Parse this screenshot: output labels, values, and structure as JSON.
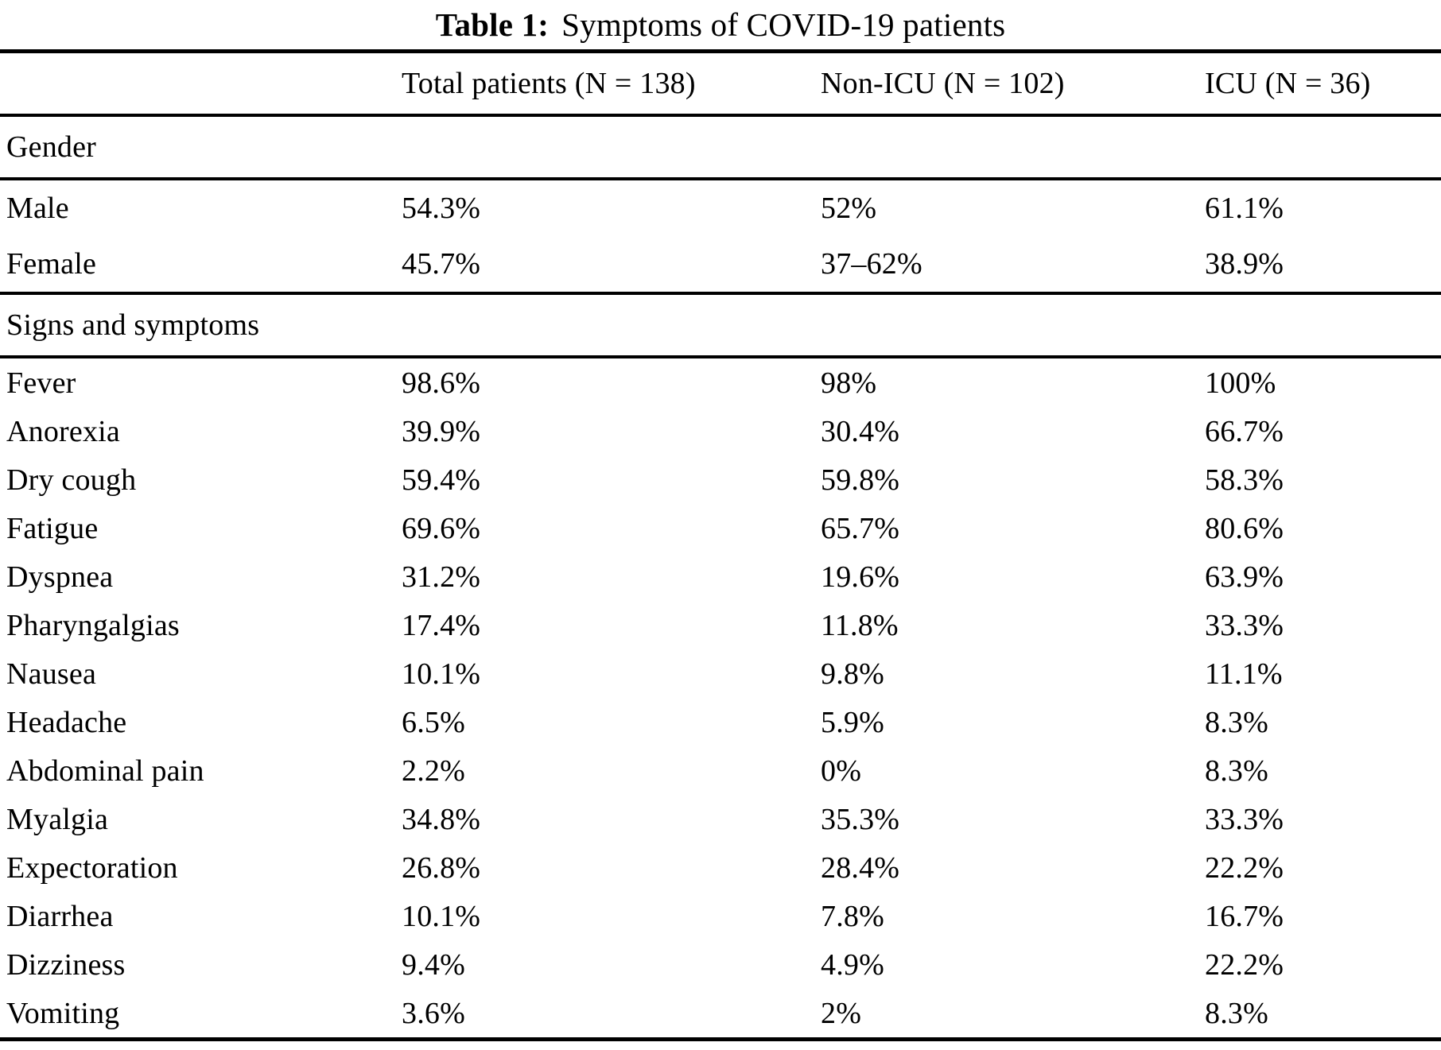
{
  "caption": {
    "label": "Table 1:",
    "text": "Symptoms of COVID-19 patients"
  },
  "table": {
    "row_header_placeholder": "",
    "columns": [
      "Total patients (N = 138)",
      "Non-ICU (N = 102)",
      "ICU (N = 36)"
    ],
    "sections": [
      {
        "label": "Gender",
        "rows": [
          {
            "label": "Male",
            "values": [
              "54.3%",
              "52%",
              "61.1%"
            ]
          },
          {
            "label": "Female",
            "values": [
              "45.7%",
              "37–62%",
              "38.9%"
            ]
          }
        ]
      },
      {
        "label": "Signs and symptoms",
        "rows": [
          {
            "label": "Fever",
            "values": [
              "98.6%",
              "98%",
              "100%"
            ]
          },
          {
            "label": "Anorexia",
            "values": [
              "39.9%",
              "30.4%",
              "66.7%"
            ]
          },
          {
            "label": "Dry cough",
            "values": [
              "59.4%",
              "59.8%",
              "58.3%"
            ]
          },
          {
            "label": "Fatigue",
            "values": [
              "69.6%",
              "65.7%",
              "80.6%"
            ]
          },
          {
            "label": "Dyspnea",
            "values": [
              "31.2%",
              "19.6%",
              "63.9%"
            ]
          },
          {
            "label": "Pharyngalgias",
            "values": [
              "17.4%",
              "11.8%",
              "33.3%"
            ]
          },
          {
            "label": "Nausea",
            "values": [
              "10.1%",
              "9.8%",
              "11.1%"
            ]
          },
          {
            "label": "Headache",
            "values": [
              "6.5%",
              "5.9%",
              "8.3%"
            ]
          },
          {
            "label": "Abdominal pain",
            "values": [
              "2.2%",
              "0%",
              "8.3%"
            ]
          },
          {
            "label": "Myalgia",
            "values": [
              "34.8%",
              "35.3%",
              "33.3%"
            ]
          },
          {
            "label": "Expectoration",
            "values": [
              "26.8%",
              "28.4%",
              "22.2%"
            ]
          },
          {
            "label": "Diarrhea",
            "values": [
              "10.1%",
              "7.8%",
              "16.7%"
            ]
          },
          {
            "label": "Dizziness",
            "values": [
              "9.4%",
              "4.9%",
              "22.2%"
            ]
          },
          {
            "label": "Vomiting",
            "values": [
              "3.6%",
              "2%",
              "8.3%"
            ]
          }
        ]
      }
    ]
  },
  "colors": {
    "text": "#000000",
    "background": "#ffffff",
    "rule": "#000000"
  }
}
